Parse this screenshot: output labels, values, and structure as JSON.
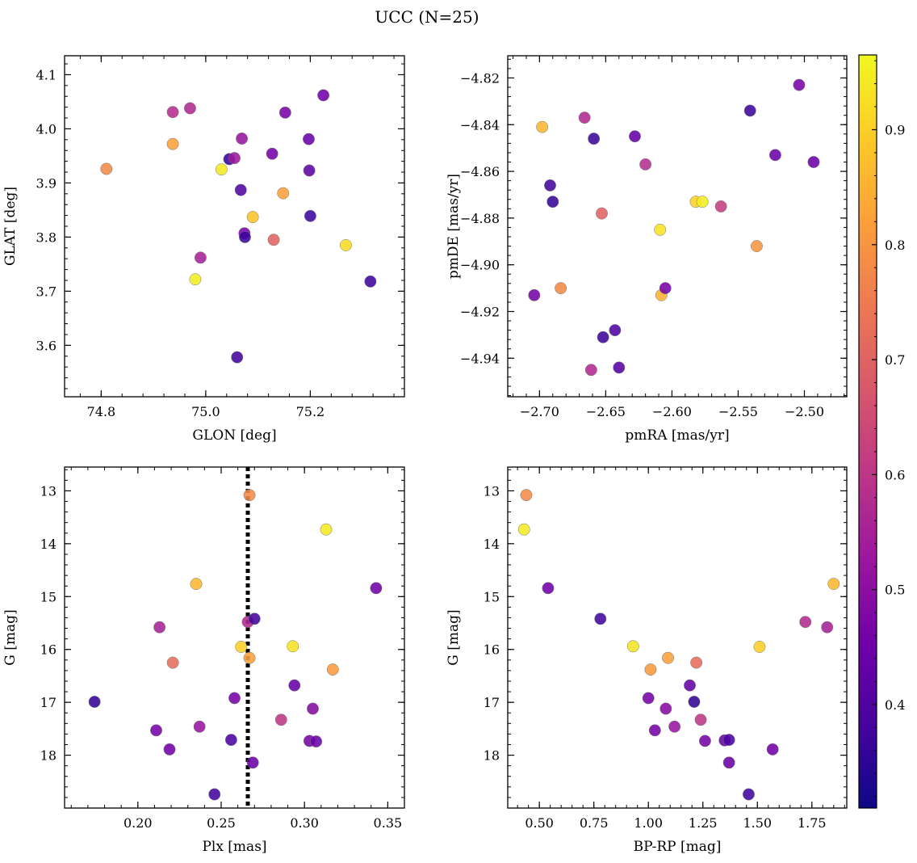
{
  "figure": {
    "title": "UCC (N=25)"
  },
  "colorbar": {
    "range": [
      0.31,
      0.965
    ],
    "ticks": [
      0.4,
      0.5,
      0.6,
      0.7,
      0.8,
      0.9
    ],
    "tick_labels": [
      "0.4",
      "0.5",
      "0.6",
      "0.7",
      "0.8",
      "0.9"
    ],
    "colormap_stops": [
      "#0d0887",
      "#46039f",
      "#7201a8",
      "#9c179e",
      "#bd3786",
      "#d8576b",
      "#ed7953",
      "#fb9f3a",
      "#fdca26",
      "#f0f921"
    ]
  },
  "chart_data": [
    {
      "type": "scatter",
      "xlabel": "GLON [deg]",
      "ylabel": "GLAT [deg]",
      "xlim": [
        74.73,
        75.38
      ],
      "ylim": [
        3.505,
        4.135
      ],
      "xticks": [
        74.8,
        75.0,
        75.2
      ],
      "xtick_labels": [
        "74.8",
        "75.0",
        "75.2"
      ],
      "yticks": [
        3.6,
        3.7,
        3.8,
        3.9,
        4.0,
        4.1
      ],
      "ytick_labels": [
        "3.6",
        "3.7",
        "3.8",
        "3.9",
        "4.0",
        "4.1"
      ],
      "points": [
        {
          "x": 74.81,
          "y": 3.926,
          "c": 0.78
        },
        {
          "x": 74.937,
          "y": 3.972,
          "c": 0.82
        },
        {
          "x": 74.937,
          "y": 4.031,
          "c": 0.58
        },
        {
          "x": 74.97,
          "y": 4.038,
          "c": 0.57
        },
        {
          "x": 74.98,
          "y": 3.722,
          "c": 0.95
        },
        {
          "x": 74.99,
          "y": 3.762,
          "c": 0.55
        },
        {
          "x": 75.03,
          "y": 3.925,
          "c": 0.94
        },
        {
          "x": 75.045,
          "y": 3.944,
          "c": 0.36
        },
        {
          "x": 75.055,
          "y": 3.946,
          "c": 0.53
        },
        {
          "x": 75.06,
          "y": 3.578,
          "c": 0.38
        },
        {
          "x": 75.067,
          "y": 3.887,
          "c": 0.4
        },
        {
          "x": 75.069,
          "y": 3.982,
          "c": 0.52
        },
        {
          "x": 75.074,
          "y": 3.807,
          "c": 0.46
        },
        {
          "x": 75.075,
          "y": 3.8,
          "c": 0.37
        },
        {
          "x": 75.09,
          "y": 3.837,
          "c": 0.88
        },
        {
          "x": 75.127,
          "y": 3.954,
          "c": 0.46
        },
        {
          "x": 75.13,
          "y": 3.795,
          "c": 0.7
        },
        {
          "x": 75.148,
          "y": 3.881,
          "c": 0.82
        },
        {
          "x": 75.152,
          "y": 4.03,
          "c": 0.47
        },
        {
          "x": 75.197,
          "y": 3.981,
          "c": 0.44
        },
        {
          "x": 75.198,
          "y": 3.923,
          "c": 0.42
        },
        {
          "x": 75.2,
          "y": 3.839,
          "c": 0.37
        },
        {
          "x": 75.225,
          "y": 4.062,
          "c": 0.45
        },
        {
          "x": 75.268,
          "y": 3.785,
          "c": 0.92
        },
        {
          "x": 75.315,
          "y": 3.718,
          "c": 0.37
        }
      ]
    },
    {
      "type": "scatter",
      "xlabel": "pmRA [mas/yr]",
      "ylabel": "pmDE [mas/yr]",
      "xlim": [
        -2.724,
        -2.468
      ],
      "ylim": [
        -4.9565,
        -4.8105
      ],
      "xticks": [
        -2.7,
        -2.65,
        -2.6,
        -2.55,
        -2.5
      ],
      "xtick_labels": [
        "−2.70",
        "−2.65",
        "−2.60",
        "−2.55",
        "−2.50"
      ],
      "yticks": [
        -4.94,
        -4.92,
        -4.9,
        -4.88,
        -4.86,
        -4.84,
        -4.82
      ],
      "ytick_labels": [
        "−4.94",
        "−4.92",
        "−4.90",
        "−4.88",
        "−4.86",
        "−4.84",
        "−4.82"
      ],
      "points": [
        {
          "x": -2.698,
          "y": -4.841,
          "c": 0.86
        },
        {
          "x": -2.704,
          "y": -4.913,
          "c": 0.46
        },
        {
          "x": -2.692,
          "y": -4.866,
          "c": 0.38
        },
        {
          "x": -2.69,
          "y": -4.873,
          "c": 0.36
        },
        {
          "x": -2.684,
          "y": -4.91,
          "c": 0.78
        },
        {
          "x": -2.666,
          "y": -4.837,
          "c": 0.57
        },
        {
          "x": -2.661,
          "y": -4.945,
          "c": 0.57
        },
        {
          "x": -2.659,
          "y": -4.846,
          "c": 0.37
        },
        {
          "x": -2.653,
          "y": -4.878,
          "c": 0.7
        },
        {
          "x": -2.652,
          "y": -4.931,
          "c": 0.37
        },
        {
          "x": -2.643,
          "y": -4.928,
          "c": 0.4
        },
        {
          "x": -2.64,
          "y": -4.944,
          "c": 0.41
        },
        {
          "x": -2.628,
          "y": -4.845,
          "c": 0.43
        },
        {
          "x": -2.62,
          "y": -4.857,
          "c": 0.58
        },
        {
          "x": -2.609,
          "y": -4.885,
          "c": 0.93
        },
        {
          "x": -2.608,
          "y": -4.913,
          "c": 0.85
        },
        {
          "x": -2.605,
          "y": -4.91,
          "c": 0.46
        },
        {
          "x": -2.582,
          "y": -4.873,
          "c": 0.9
        },
        {
          "x": -2.577,
          "y": -4.873,
          "c": 0.95
        },
        {
          "x": -2.563,
          "y": -4.875,
          "c": 0.62
        },
        {
          "x": -2.536,
          "y": -4.892,
          "c": 0.8
        },
        {
          "x": -2.541,
          "y": -4.834,
          "c": 0.37
        },
        {
          "x": -2.522,
          "y": -4.853,
          "c": 0.44
        },
        {
          "x": -2.504,
          "y": -4.823,
          "c": 0.47
        },
        {
          "x": -2.493,
          "y": -4.856,
          "c": 0.44
        }
      ]
    },
    {
      "type": "scatter",
      "xlabel": "Plx [mas]",
      "ylabel": "G [mag]",
      "xlim": [
        0.156,
        0.36
      ],
      "ylim": [
        19.0,
        12.55
      ],
      "y_inverted": true,
      "xticks": [
        0.2,
        0.25,
        0.3,
        0.35
      ],
      "xtick_labels": [
        "0.20",
        "0.25",
        "0.30",
        "0.35"
      ],
      "yticks": [
        13,
        14,
        15,
        16,
        17,
        18
      ],
      "ytick_labels": [
        "13",
        "14",
        "15",
        "16",
        "17",
        "18"
      ],
      "vline": {
        "x": 0.266,
        "style": "dotted"
      },
      "points": [
        {
          "x": 0.267,
          "y": 13.08,
          "c": 0.78
        },
        {
          "x": 0.313,
          "y": 13.73,
          "c": 0.94
        },
        {
          "x": 0.235,
          "y": 14.76,
          "c": 0.86
        },
        {
          "x": 0.343,
          "y": 14.84,
          "c": 0.45
        },
        {
          "x": 0.266,
          "y": 15.48,
          "c": 0.57
        },
        {
          "x": 0.27,
          "y": 15.42,
          "c": 0.38
        },
        {
          "x": 0.213,
          "y": 15.58,
          "c": 0.55
        },
        {
          "x": 0.262,
          "y": 15.95,
          "c": 0.9
        },
        {
          "x": 0.293,
          "y": 15.94,
          "c": 0.93
        },
        {
          "x": 0.267,
          "y": 16.16,
          "c": 0.82
        },
        {
          "x": 0.221,
          "y": 16.25,
          "c": 0.72
        },
        {
          "x": 0.317,
          "y": 16.38,
          "c": 0.81
        },
        {
          "x": 0.294,
          "y": 16.68,
          "c": 0.43
        },
        {
          "x": 0.258,
          "y": 16.92,
          "c": 0.46
        },
        {
          "x": 0.174,
          "y": 16.99,
          "c": 0.36
        },
        {
          "x": 0.305,
          "y": 17.12,
          "c": 0.49
        },
        {
          "x": 0.286,
          "y": 17.33,
          "c": 0.6
        },
        {
          "x": 0.237,
          "y": 17.46,
          "c": 0.52
        },
        {
          "x": 0.211,
          "y": 17.53,
          "c": 0.46
        },
        {
          "x": 0.256,
          "y": 17.71,
          "c": 0.39
        },
        {
          "x": 0.303,
          "y": 17.73,
          "c": 0.46
        },
        {
          "x": 0.307,
          "y": 17.74,
          "c": 0.44
        },
        {
          "x": 0.219,
          "y": 17.89,
          "c": 0.45
        },
        {
          "x": 0.269,
          "y": 18.14,
          "c": 0.44
        },
        {
          "x": 0.246,
          "y": 18.74,
          "c": 0.38
        }
      ]
    },
    {
      "type": "scatter",
      "xlabel": "BP-RP [mag]",
      "ylabel": "G [mag]",
      "xlim": [
        0.355,
        1.91
      ],
      "ylim": [
        19.0,
        12.55
      ],
      "y_inverted": true,
      "xticks": [
        0.5,
        0.75,
        1.0,
        1.25,
        1.5,
        1.75
      ],
      "xtick_labels": [
        "0.50",
        "0.75",
        "1.00",
        "1.25",
        "1.50",
        "1.75"
      ],
      "yticks": [
        13,
        14,
        15,
        16,
        17,
        18
      ],
      "ytick_labels": [
        "13",
        "14",
        "15",
        "16",
        "17",
        "18"
      ],
      "points": [
        {
          "x": 0.44,
          "y": 13.08,
          "c": 0.78
        },
        {
          "x": 0.43,
          "y": 13.73,
          "c": 0.94
        },
        {
          "x": 0.54,
          "y": 14.84,
          "c": 0.45
        },
        {
          "x": 0.78,
          "y": 15.42,
          "c": 0.38
        },
        {
          "x": 0.93,
          "y": 15.94,
          "c": 0.93
        },
        {
          "x": 1.01,
          "y": 16.38,
          "c": 0.81
        },
        {
          "x": 1.09,
          "y": 16.16,
          "c": 0.82
        },
        {
          "x": 1.22,
          "y": 16.25,
          "c": 0.72
        },
        {
          "x": 1.19,
          "y": 16.68,
          "c": 0.43
        },
        {
          "x": 1.21,
          "y": 16.99,
          "c": 0.36
        },
        {
          "x": 1.0,
          "y": 16.92,
          "c": 0.46
        },
        {
          "x": 1.08,
          "y": 17.12,
          "c": 0.49
        },
        {
          "x": 1.24,
          "y": 17.33,
          "c": 0.6
        },
        {
          "x": 1.12,
          "y": 17.46,
          "c": 0.52
        },
        {
          "x": 1.03,
          "y": 17.53,
          "c": 0.46
        },
        {
          "x": 1.26,
          "y": 17.73,
          "c": 0.46
        },
        {
          "x": 1.35,
          "y": 17.72,
          "c": 0.44
        },
        {
          "x": 1.37,
          "y": 17.71,
          "c": 0.39
        },
        {
          "x": 1.57,
          "y": 17.89,
          "c": 0.45
        },
        {
          "x": 1.37,
          "y": 18.14,
          "c": 0.44
        },
        {
          "x": 1.46,
          "y": 18.74,
          "c": 0.38
        },
        {
          "x": 1.51,
          "y": 15.95,
          "c": 0.9
        },
        {
          "x": 1.72,
          "y": 15.48,
          "c": 0.57
        },
        {
          "x": 1.82,
          "y": 15.58,
          "c": 0.55
        },
        {
          "x": 1.85,
          "y": 14.76,
          "c": 0.86
        }
      ]
    }
  ]
}
